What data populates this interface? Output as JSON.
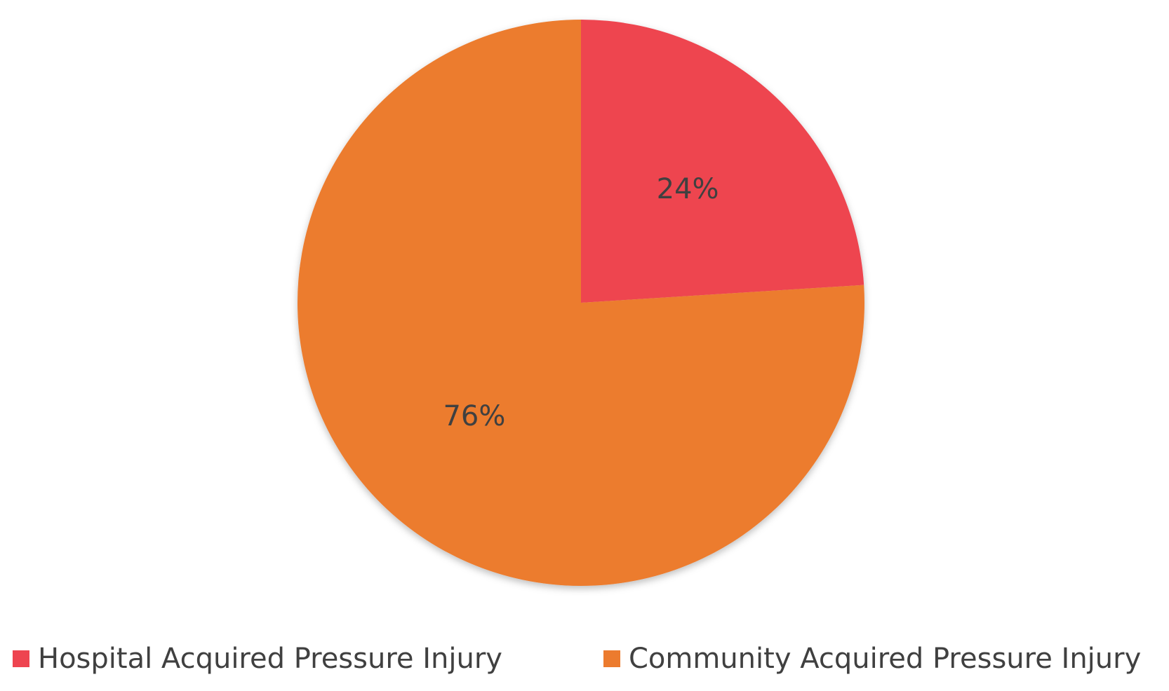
{
  "chart_data": {
    "type": "pie",
    "categories": [
      "Hospital Acquired Pressure Injury",
      "Community Acquired Pressure Injury"
    ],
    "values": [
      24,
      76
    ],
    "labels": [
      "24%",
      "76%"
    ],
    "colors": [
      "#ee4450",
      "#ec7b2e"
    ],
    "legend_position": "bottom",
    "start_angle_deg": 0,
    "direction": "clockwise"
  }
}
